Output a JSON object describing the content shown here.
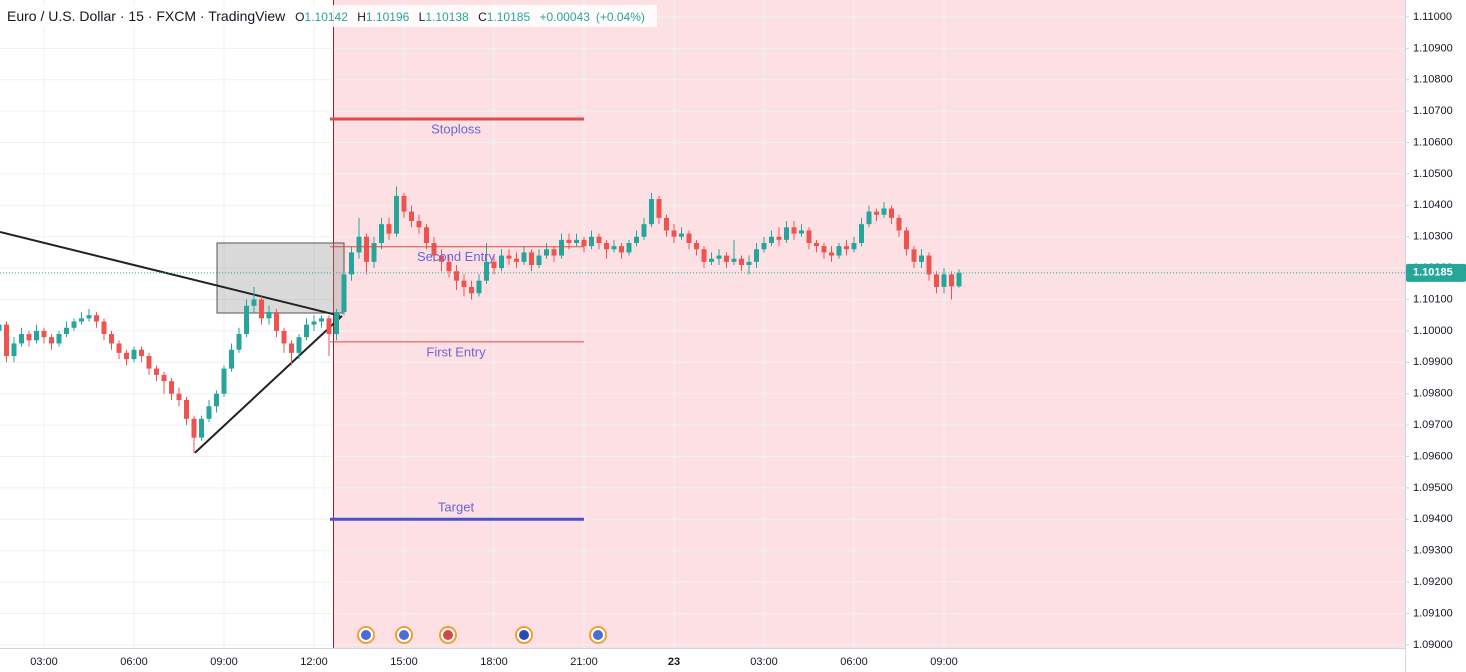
{
  "chart_data": {
    "type": "candlestick",
    "title": "Euro / U.S. Dollar · 15 · FXCM · TradingView",
    "header": {
      "labels": [
        "O",
        "H",
        "L",
        "C"
      ],
      "values": [
        1.10142,
        1.10196,
        1.10138,
        1.10185
      ],
      "change": {
        "value": 0.00043,
        "label": "+0.00043"
      },
      "change_pct": {
        "value": 0.04,
        "label": "(+0.04%)"
      }
    },
    "categories": [
      null,
      null,
      null,
      null,
      null,
      null,
      "03:00",
      null,
      null,
      null,
      null,
      null,
      null,
      null,
      null,
      null,
      null,
      null,
      "06:00",
      null,
      null,
      null,
      null,
      null,
      null,
      null,
      null,
      null,
      null,
      null,
      "09:00",
      null,
      null,
      null,
      null,
      null,
      null,
      null,
      null,
      null,
      null,
      null,
      "12:00",
      null,
      null,
      null,
      null,
      null,
      null,
      null,
      null,
      null,
      null,
      null,
      "15:00",
      null,
      null,
      null,
      null,
      null,
      null,
      null,
      null,
      null,
      null,
      null,
      "18:00",
      null,
      null,
      null,
      null,
      null,
      null,
      null,
      null,
      null,
      null,
      null,
      "21:00",
      null,
      null,
      null,
      null,
      null,
      null,
      null,
      null,
      null,
      null,
      null,
      "23",
      null,
      null,
      null,
      null,
      null,
      null,
      null,
      null,
      null,
      null,
      null,
      "03:00",
      null,
      null,
      null,
      null,
      null,
      null,
      null,
      null,
      null,
      null,
      null,
      "06:00",
      null,
      null,
      null,
      null,
      null,
      null,
      null,
      null,
      null,
      null,
      null,
      "09:00",
      null,
      null
    ],
    "open": [
      1.1,
      1.1002,
      1.0992,
      1.0996,
      1.0999,
      1.0997,
      1.1,
      1.0998,
      1.0996,
      1.0999,
      1.1001,
      1.1003,
      1.1004,
      1.1005,
      1.1003,
      1.0999,
      1.0996,
      1.0993,
      1.0991,
      1.0994,
      1.0992,
      1.0988,
      1.0986,
      1.0984,
      1.098,
      1.0978,
      1.0972,
      1.0966,
      1.0972,
      1.0976,
      1.098,
      1.0988,
      1.0994,
      1.0999,
      1.1008,
      1.101,
      1.1004,
      1.1006,
      1.1,
      1.0996,
      1.0993,
      1.0998,
      1.1002,
      1.1003,
      1.1004,
      1.0999,
      1.1006,
      1.1018,
      1.1025,
      1.103,
      1.1022,
      1.1028,
      1.1034,
      1.1031,
      1.1043,
      1.1038,
      1.1035,
      1.1033,
      1.1028,
      1.1024,
      1.1022,
      1.1019,
      1.1016,
      1.1014,
      1.1012,
      1.1016,
      1.1022,
      1.102,
      1.1024,
      1.1023,
      1.1022,
      1.1025,
      1.1021,
      1.1024,
      1.1026,
      1.1024,
      1.1029,
      1.1028,
      1.1029,
      1.1027,
      1.103,
      1.1028,
      1.1026,
      1.1027,
      1.1025,
      1.1028,
      1.103,
      1.1034,
      1.1042,
      1.1036,
      1.1032,
      1.103,
      1.1031,
      1.1028,
      1.1026,
      1.1022,
      1.1023,
      1.1024,
      1.1022,
      1.1023,
      1.1021,
      1.1022,
      1.1026,
      1.1028,
      1.103,
      1.1029,
      1.1033,
      1.1031,
      1.1032,
      1.1028,
      1.1027,
      1.1025,
      1.1024,
      1.1027,
      1.1026,
      1.1028,
      1.1034,
      1.1038,
      1.1037,
      1.1039,
      1.1036,
      1.1032,
      1.1026,
      1.1022,
      1.1024,
      1.1018,
      1.1014,
      1.1018,
      1.10142
    ],
    "high": [
      1.1004,
      1.1003,
      1.0998,
      1.1001,
      1.1,
      1.1002,
      1.1001,
      1.0999,
      1.1,
      1.1003,
      1.1004,
      1.1006,
      1.1007,
      1.1006,
      1.1004,
      1.1,
      1.0997,
      1.0994,
      1.0995,
      1.0995,
      1.0993,
      1.0989,
      1.0987,
      1.0985,
      1.0982,
      1.0979,
      1.0973,
      1.0973,
      1.0978,
      1.0981,
      1.0989,
      1.0996,
      1.1001,
      1.101,
      1.1014,
      1.1011,
      1.1008,
      1.1007,
      1.1001,
      1.0997,
      1.0999,
      1.1004,
      1.1005,
      1.1005,
      1.1005,
      1.1007,
      1.1019,
      1.1027,
      1.1036,
      1.1031,
      1.103,
      1.1036,
      1.1036,
      1.1046,
      1.1044,
      1.104,
      1.1037,
      1.1034,
      1.103,
      1.1026,
      1.1024,
      1.1021,
      1.1018,
      1.1016,
      1.1018,
      1.1028,
      1.1024,
      1.1026,
      1.1026,
      1.1025,
      1.1027,
      1.1026,
      1.1026,
      1.1028,
      1.1027,
      1.1031,
      1.1031,
      1.1031,
      1.103,
      1.1032,
      1.1031,
      1.1029,
      1.1029,
      1.1028,
      1.1029,
      1.1032,
      1.1036,
      1.1044,
      1.1043,
      1.1037,
      1.1034,
      1.1033,
      1.1032,
      1.1029,
      1.1027,
      1.1025,
      1.1026,
      1.1025,
      1.1029,
      1.1024,
      1.1024,
      1.1028,
      1.103,
      1.1032,
      1.1033,
      1.1035,
      1.1035,
      1.1034,
      1.1033,
      1.1029,
      1.1028,
      1.1027,
      1.1028,
      1.1029,
      1.103,
      1.1036,
      1.104,
      1.1039,
      1.1041,
      1.104,
      1.1037,
      1.1033,
      1.1027,
      1.1026,
      1.1025,
      1.1019,
      1.102,
      1.1019,
      1.10196
    ],
    "low": [
      1.0998,
      1.099,
      1.099,
      1.0995,
      1.0995,
      1.0996,
      1.0996,
      1.0994,
      1.0995,
      1.0998,
      1.1,
      1.1002,
      1.1003,
      1.1001,
      1.0997,
      1.0994,
      1.0991,
      1.0989,
      1.099,
      1.099,
      1.0986,
      1.0984,
      1.098,
      1.0978,
      1.0976,
      1.097,
      1.0961,
      1.0965,
      1.0971,
      1.0974,
      1.0979,
      1.0987,
      1.0993,
      1.0998,
      1.1006,
      1.1002,
      1.1002,
      1.0998,
      1.0993,
      1.0989,
      1.0991,
      1.0997,
      1.1,
      1.1001,
      1.0992,
      1.0997,
      1.1005,
      1.1016,
      1.1023,
      1.1018,
      1.102,
      1.1026,
      1.1029,
      1.103,
      1.1036,
      1.1033,
      1.1031,
      1.1026,
      1.1022,
      1.1019,
      1.1017,
      1.1013,
      1.1011,
      1.101,
      1.1011,
      1.1015,
      1.1018,
      1.1019,
      1.1021,
      1.102,
      1.1021,
      1.1019,
      1.102,
      1.1023,
      1.1022,
      1.1023,
      1.1026,
      1.1027,
      1.1025,
      1.1026,
      1.1026,
      1.1023,
      1.1025,
      1.1023,
      1.1024,
      1.1027,
      1.1029,
      1.1033,
      1.1034,
      1.103,
      1.1028,
      1.1029,
      1.1026,
      1.1024,
      1.102,
      1.1021,
      1.1021,
      1.102,
      1.1021,
      1.1019,
      1.1018,
      1.102,
      1.1025,
      1.1027,
      1.1027,
      1.1028,
      1.1029,
      1.103,
      1.1026,
      1.1025,
      1.1023,
      1.1022,
      1.1023,
      1.1024,
      1.1025,
      1.1027,
      1.1033,
      1.1035,
      1.1036,
      1.1034,
      1.103,
      1.1024,
      1.102,
      1.102,
      1.1016,
      1.1012,
      1.1012,
      1.101,
      1.10138
    ],
    "close": [
      1.1002,
      1.0992,
      1.0996,
      1.0999,
      1.0997,
      1.1,
      1.0998,
      1.0996,
      1.0999,
      1.1001,
      1.1003,
      1.1004,
      1.1005,
      1.1003,
      1.0999,
      1.0996,
      1.0993,
      1.0991,
      1.0994,
      1.0992,
      1.0988,
      1.0986,
      1.0984,
      1.098,
      1.0978,
      1.0972,
      1.0966,
      1.0972,
      1.0976,
      1.098,
      1.0988,
      1.0994,
      1.0999,
      1.1008,
      1.101,
      1.1004,
      1.1006,
      1.1,
      1.0996,
      1.0993,
      1.0998,
      1.1002,
      1.1003,
      1.1004,
      1.0999,
      1.1006,
      1.1018,
      1.1025,
      1.103,
      1.1022,
      1.1028,
      1.1034,
      1.1031,
      1.1043,
      1.1038,
      1.1035,
      1.1033,
      1.1028,
      1.1024,
      1.1022,
      1.1019,
      1.1016,
      1.1014,
      1.1012,
      1.1016,
      1.1022,
      1.102,
      1.1024,
      1.1023,
      1.1022,
      1.1025,
      1.1021,
      1.1024,
      1.1026,
      1.1024,
      1.1029,
      1.1028,
      1.1029,
      1.1027,
      1.103,
      1.1028,
      1.1026,
      1.1027,
      1.1025,
      1.1028,
      1.103,
      1.1034,
      1.1042,
      1.1036,
      1.1032,
      1.103,
      1.1031,
      1.1028,
      1.1026,
      1.1022,
      1.1023,
      1.1024,
      1.1022,
      1.1023,
      1.1021,
      1.1022,
      1.1026,
      1.1028,
      1.103,
      1.1029,
      1.1033,
      1.1031,
      1.1032,
      1.1028,
      1.1027,
      1.1025,
      1.1024,
      1.1027,
      1.1026,
      1.1028,
      1.1034,
      1.1038,
      1.1037,
      1.1039,
      1.1036,
      1.1032,
      1.1026,
      1.1022,
      1.1024,
      1.1018,
      1.1014,
      1.1018,
      1.10142,
      1.10185
    ],
    "up_color": "#26a69a",
    "down_color": "#ef5350",
    "ylim": [
      1.0899,
      1.11054
    ],
    "yticks": [
      {
        "value": 1.09,
        "label": "1.09000"
      },
      {
        "value": 1.091,
        "label": "1.09100"
      },
      {
        "value": 1.092,
        "label": "1.09200"
      },
      {
        "value": 1.093,
        "label": "1.09300"
      },
      {
        "value": 1.094,
        "label": "1.09400"
      },
      {
        "value": 1.095,
        "label": "1.09500"
      },
      {
        "value": 1.096,
        "label": "1.09600"
      },
      {
        "value": 1.097,
        "label": "1.09700"
      },
      {
        "value": 1.098,
        "label": "1.09800"
      },
      {
        "value": 1.099,
        "label": "1.09900"
      },
      {
        "value": 1.1,
        "label": "1.10000"
      },
      {
        "value": 1.101,
        "label": "1.10100"
      },
      {
        "value": 1.102,
        "label": "1.10200"
      },
      {
        "value": 1.103,
        "label": "1.10300"
      },
      {
        "value": 1.104,
        "label": "1.10400"
      },
      {
        "value": 1.105,
        "label": "1.10500"
      },
      {
        "value": 1.106,
        "label": "1.10600"
      },
      {
        "value": 1.107,
        "label": "1.10700"
      },
      {
        "value": 1.108,
        "label": "1.10800"
      },
      {
        "value": 1.109,
        "label": "1.10900"
      },
      {
        "value": 1.11,
        "label": "1.11000"
      }
    ],
    "grid": true,
    "last_price": 1.10185,
    "levels": [
      {
        "label": "Stoploss",
        "value": 1.10675,
        "color": "#e04a4a",
        "width": 3,
        "label_side": "below"
      },
      {
        "label": "Second Entry",
        "value": 1.10268,
        "color": "#e04a4a",
        "width": 1,
        "label_side": "below"
      },
      {
        "label": "First Entry",
        "value": 1.09965,
        "color": "#e04a4a",
        "width": 1,
        "label_side": "below"
      },
      {
        "label": "Target",
        "value": 1.094,
        "color": "#4a4fd6",
        "width": 3,
        "label_side": "above"
      }
    ],
    "zone": [
      1.1028,
      1.10057
    ],
    "trend_lines": [
      [
        1.10315,
        1.10048
      ],
      [
        1.09612,
        1.10048
      ]
    ]
  }
}
